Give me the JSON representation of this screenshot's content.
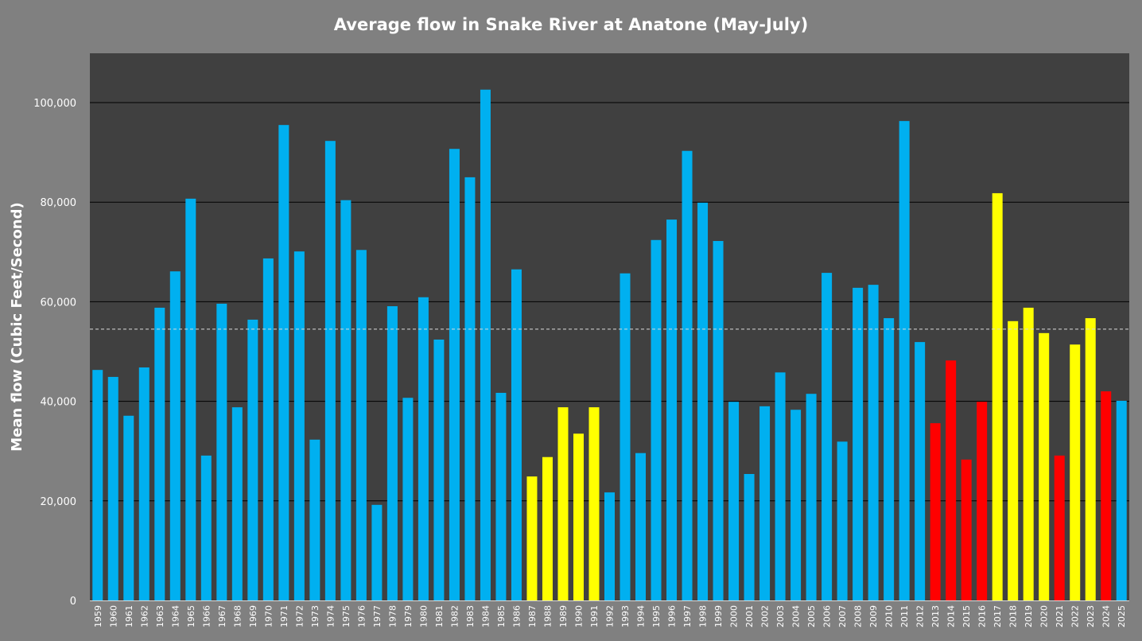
{
  "chart_data": {
    "type": "bar",
    "title": "Average flow in Snake River at Anatone (May-July)",
    "xlabel": "",
    "ylabel": "Mean flow (Cubic Feet/Second)",
    "ylim": [
      0,
      110000
    ],
    "yticks": [
      0,
      20000,
      40000,
      60000,
      80000,
      100000
    ],
    "ytick_labels": [
      "0",
      "20,000",
      "40,000",
      "60,000",
      "80,000",
      "100,000"
    ],
    "grid": true,
    "legend": "none",
    "reference_line": {
      "value": 54500,
      "style": "dashed",
      "color": "#d9d9d9"
    },
    "colors": {
      "blue": "#00b0f0",
      "yellow": "#ffff00",
      "red": "#ff0000",
      "plot_bg": "#404040",
      "page_bg": "#808080"
    },
    "categories": [
      "1959",
      "1960",
      "1961",
      "1962",
      "1963",
      "1964",
      "1965",
      "1966",
      "1967",
      "1968",
      "1969",
      "1970",
      "1971",
      "1972",
      "1973",
      "1974",
      "1975",
      "1976",
      "1977",
      "1978",
      "1979",
      "1980",
      "1981",
      "1982",
      "1983",
      "1984",
      "1985",
      "1986",
      "1987",
      "1988",
      "1989",
      "1990",
      "1991",
      "1992",
      "1993",
      "1994",
      "1995",
      "1996",
      "1997",
      "1998",
      "1999",
      "2000",
      "2001",
      "2002",
      "2003",
      "2004",
      "2005",
      "2006",
      "2007",
      "2008",
      "2009",
      "2010",
      "2011",
      "2012",
      "2013",
      "2014",
      "2015",
      "2016",
      "2017",
      "2018",
      "2019",
      "2020",
      "2021",
      "2022",
      "2023",
      "2024",
      "2025"
    ],
    "values": [
      46300,
      44900,
      37100,
      46800,
      58800,
      66100,
      80700,
      29100,
      59600,
      38800,
      56400,
      68700,
      95500,
      70100,
      32300,
      92300,
      80400,
      70400,
      19200,
      59100,
      40700,
      60900,
      52400,
      90700,
      85000,
      102600,
      41700,
      66500,
      24900,
      28800,
      38800,
      33500,
      38800,
      21700,
      65700,
      29600,
      72400,
      76500,
      90300,
      79900,
      72200,
      39900,
      25400,
      39000,
      45800,
      38300,
      41500,
      65800,
      31900,
      62800,
      63400,
      56700,
      96300,
      51900,
      35600,
      48200,
      28300,
      39900,
      81800,
      56100,
      58800,
      53700,
      29100,
      51400,
      56700,
      42000,
      40100
    ],
    "bar_colors": [
      "blue",
      "blue",
      "blue",
      "blue",
      "blue",
      "blue",
      "blue",
      "blue",
      "blue",
      "blue",
      "blue",
      "blue",
      "blue",
      "blue",
      "blue",
      "blue",
      "blue",
      "blue",
      "blue",
      "blue",
      "blue",
      "blue",
      "blue",
      "blue",
      "blue",
      "blue",
      "blue",
      "blue",
      "yellow",
      "yellow",
      "yellow",
      "yellow",
      "yellow",
      "blue",
      "blue",
      "blue",
      "blue",
      "blue",
      "blue",
      "blue",
      "blue",
      "blue",
      "blue",
      "blue",
      "blue",
      "blue",
      "blue",
      "blue",
      "blue",
      "blue",
      "blue",
      "blue",
      "blue",
      "blue",
      "red",
      "red",
      "red",
      "red",
      "yellow",
      "yellow",
      "yellow",
      "yellow",
      "red",
      "yellow",
      "yellow",
      "red",
      "blue"
    ]
  }
}
